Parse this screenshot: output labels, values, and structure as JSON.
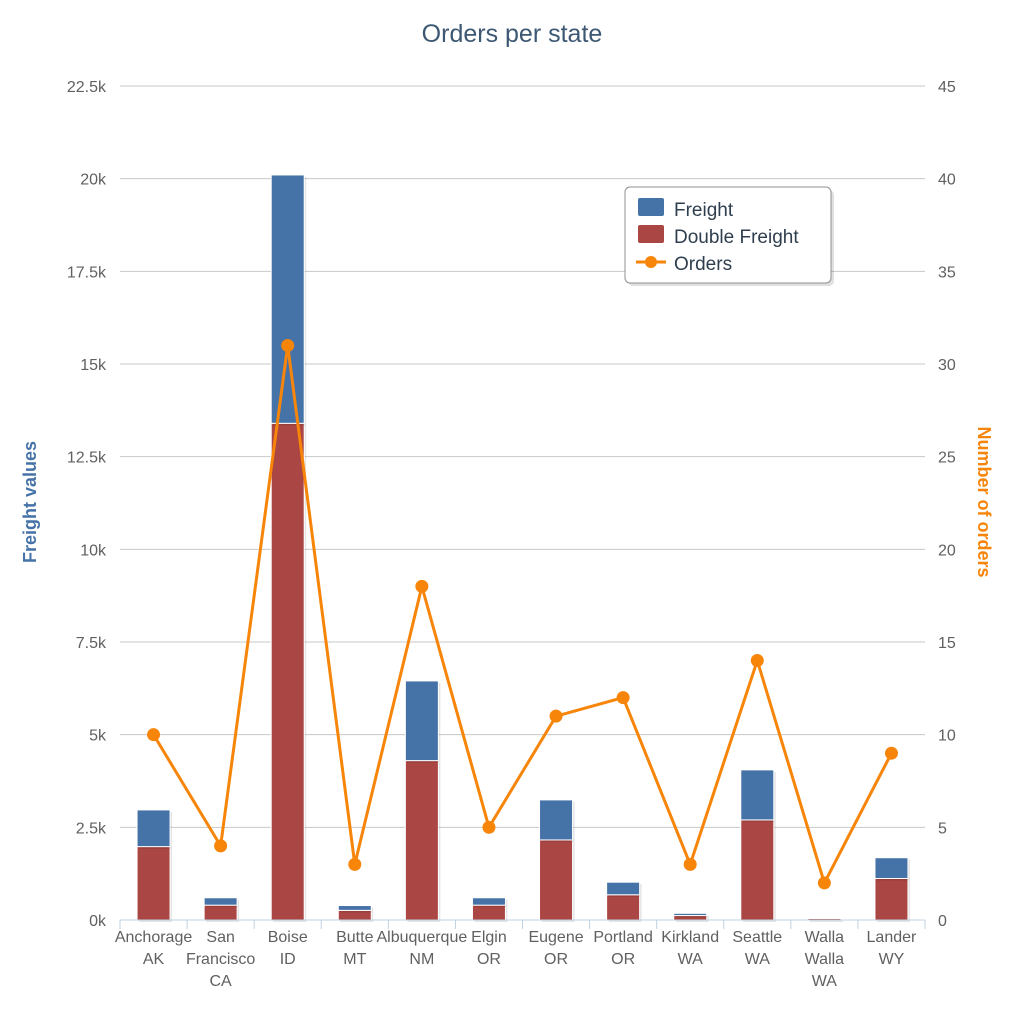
{
  "chart_data": {
    "type": "bar",
    "title": "Orders per state",
    "categories": [
      [
        "Anchorage",
        "AK"
      ],
      [
        "San",
        "Francisco",
        "CA"
      ],
      [
        "Boise",
        "ID"
      ],
      [
        "Butte",
        "MT"
      ],
      [
        "Albuquerque",
        "NM"
      ],
      [
        "Elgin",
        "OR"
      ],
      [
        "Eugene",
        "OR"
      ],
      [
        "Portland",
        "OR"
      ],
      [
        "Kirkland",
        "WA"
      ],
      [
        "Seattle",
        "WA"
      ],
      [
        "Walla",
        "Walla",
        "WA"
      ],
      [
        "Lander",
        "WY"
      ]
    ],
    "series": [
      {
        "name": "Freight",
        "type": "bar",
        "stacked": true,
        "axis": "left",
        "color": "#4572a7",
        "values": [
          990,
          200,
          6700,
          130,
          2150,
          200,
          1080,
          340,
          60,
          1350,
          20,
          560
        ]
      },
      {
        "name": "Double Freight",
        "type": "bar",
        "stacked": true,
        "axis": "left",
        "color": "#aa4643",
        "values": [
          1980,
          400,
          13400,
          260,
          4300,
          400,
          2160,
          680,
          120,
          2700,
          40,
          1120
        ]
      },
      {
        "name": "Orders",
        "type": "line",
        "axis": "right",
        "color": "#f7850a",
        "values": [
          10,
          4,
          31,
          3,
          18,
          5,
          11,
          12,
          3,
          14,
          2,
          9
        ]
      }
    ],
    "y_left": {
      "label": "Freight values",
      "range": [
        0,
        22500
      ],
      "ticks": [
        "0k",
        "2.5k",
        "5k",
        "7.5k",
        "10k",
        "12.5k",
        "15k",
        "17.5k",
        "20k",
        "22.5k"
      ],
      "color": "#4572a7"
    },
    "y_right": {
      "label": "Number of orders",
      "range": [
        0,
        45
      ],
      "ticks": [
        "0",
        "5",
        "10",
        "15",
        "20",
        "25",
        "30",
        "35",
        "40",
        "45"
      ],
      "color": "#f7850a"
    },
    "grid": true,
    "legend": {
      "position": "top-right",
      "items": [
        "Freight",
        "Double Freight",
        "Orders"
      ]
    }
  }
}
